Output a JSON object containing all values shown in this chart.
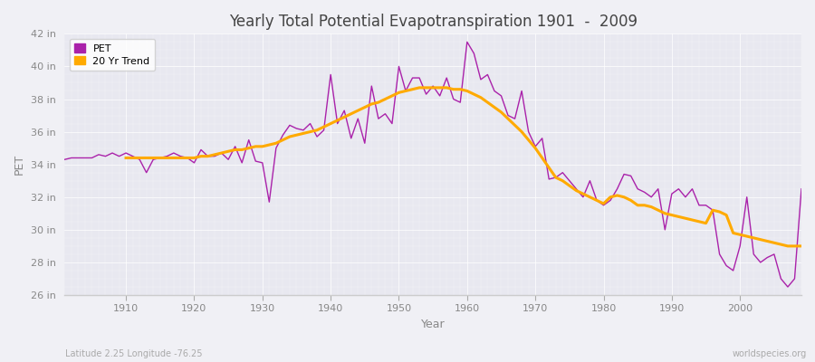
{
  "title": "Yearly Total Potential Evapotranspiration 1901  -  2009",
  "xlabel": "Year",
  "ylabel": "PET",
  "subtitle_left": "Latitude 2.25 Longitude -76.25",
  "subtitle_right": "worldspecies.org",
  "background_color": "#f0f0f5",
  "plot_bg_color": "#e8e8f0",
  "pet_color": "#aa22aa",
  "trend_color": "#ffaa00",
  "ylim": [
    26,
    42
  ],
  "xlim": [
    1901,
    2009
  ],
  "yticks": [
    26,
    28,
    30,
    32,
    34,
    36,
    38,
    40,
    42
  ],
  "ytick_labels": [
    "26 in",
    "28 in",
    "30 in",
    "32 in",
    "34 in",
    "36 in",
    "38 in",
    "40 in",
    "42 in"
  ],
  "xticks": [
    1910,
    1920,
    1930,
    1940,
    1950,
    1960,
    1970,
    1980,
    1990,
    2000
  ],
  "pet_years": [
    1901,
    1902,
    1903,
    1904,
    1905,
    1906,
    1907,
    1908,
    1909,
    1910,
    1911,
    1912,
    1913,
    1914,
    1915,
    1916,
    1917,
    1918,
    1919,
    1920,
    1921,
    1922,
    1923,
    1924,
    1925,
    1926,
    1927,
    1928,
    1929,
    1930,
    1931,
    1932,
    1933,
    1934,
    1935,
    1936,
    1937,
    1938,
    1939,
    1940,
    1941,
    1942,
    1943,
    1944,
    1945,
    1946,
    1947,
    1948,
    1949,
    1950,
    1951,
    1952,
    1953,
    1954,
    1955,
    1956,
    1957,
    1958,
    1959,
    1960,
    1961,
    1962,
    1963,
    1964,
    1965,
    1966,
    1967,
    1968,
    1969,
    1970,
    1971,
    1972,
    1973,
    1974,
    1975,
    1976,
    1977,
    1978,
    1979,
    1980,
    1981,
    1982,
    1983,
    1984,
    1985,
    1986,
    1987,
    1988,
    1989,
    1990,
    1991,
    1992,
    1993,
    1994,
    1995,
    1996,
    1997,
    1998,
    1999,
    2000,
    2001,
    2002,
    2003,
    2004,
    2005,
    2006,
    2007,
    2008,
    2009
  ],
  "pet_values": [
    34.3,
    34.4,
    34.4,
    34.4,
    34.4,
    34.6,
    34.5,
    34.7,
    34.5,
    34.7,
    34.5,
    34.3,
    33.5,
    34.3,
    34.4,
    34.5,
    34.7,
    34.5,
    34.4,
    34.1,
    34.9,
    34.5,
    34.5,
    34.7,
    34.3,
    35.1,
    34.1,
    35.5,
    34.2,
    34.1,
    31.7,
    35.0,
    35.8,
    36.4,
    36.2,
    36.1,
    36.5,
    35.7,
    36.1,
    39.5,
    36.5,
    37.3,
    35.6,
    36.8,
    35.3,
    38.8,
    36.8,
    37.1,
    36.5,
    40.0,
    38.5,
    39.3,
    39.3,
    38.3,
    38.8,
    38.2,
    39.3,
    38.0,
    37.8,
    41.5,
    40.8,
    39.2,
    39.5,
    38.5,
    38.2,
    37.0,
    36.8,
    38.5,
    36.0,
    35.1,
    35.6,
    33.1,
    33.2,
    33.5,
    33.0,
    32.5,
    32.0,
    33.0,
    31.8,
    31.5,
    31.8,
    32.5,
    33.4,
    33.3,
    32.5,
    32.3,
    32.0,
    32.5,
    30.0,
    32.2,
    32.5,
    32.0,
    32.5,
    31.5,
    31.5,
    31.2,
    28.5,
    27.8,
    27.5,
    29.0,
    32.0,
    28.5,
    28.0,
    28.3,
    28.5,
    27.0,
    26.5,
    27.0,
    32.5
  ],
  "trend_years": [
    1910,
    1911,
    1912,
    1913,
    1914,
    1915,
    1916,
    1917,
    1918,
    1919,
    1920,
    1921,
    1922,
    1923,
    1924,
    1925,
    1926,
    1927,
    1928,
    1929,
    1930,
    1931,
    1932,
    1933,
    1934,
    1935,
    1936,
    1937,
    1938,
    1939,
    1940,
    1941,
    1942,
    1943,
    1944,
    1945,
    1946,
    1947,
    1948,
    1949,
    1950,
    1951,
    1952,
    1953,
    1954,
    1955,
    1956,
    1957,
    1958,
    1959,
    1960,
    1961,
    1962,
    1963,
    1964,
    1965,
    1966,
    1967,
    1968,
    1969,
    1970,
    1971,
    1972,
    1973,
    1974,
    1975,
    1976,
    1977,
    1978,
    1979,
    1980,
    1981,
    1982,
    1983,
    1984,
    1985,
    1986,
    1987,
    1988,
    1989,
    1990,
    1991,
    1992,
    1993,
    1994,
    1995,
    1996,
    1997,
    1998,
    1999,
    2000,
    2001,
    2002,
    2003,
    2004,
    2005,
    2006,
    2007,
    2008,
    2009
  ],
  "trend_values": [
    34.4,
    34.4,
    34.4,
    34.4,
    34.4,
    34.4,
    34.4,
    34.4,
    34.4,
    34.4,
    34.4,
    34.5,
    34.5,
    34.6,
    34.7,
    34.8,
    34.9,
    34.9,
    35.0,
    35.1,
    35.1,
    35.2,
    35.3,
    35.5,
    35.7,
    35.8,
    35.9,
    36.0,
    36.1,
    36.3,
    36.5,
    36.7,
    36.9,
    37.1,
    37.3,
    37.5,
    37.7,
    37.8,
    38.0,
    38.2,
    38.4,
    38.5,
    38.6,
    38.7,
    38.7,
    38.7,
    38.7,
    38.7,
    38.6,
    38.6,
    38.5,
    38.3,
    38.1,
    37.8,
    37.5,
    37.2,
    36.8,
    36.4,
    36.0,
    35.5,
    35.0,
    34.4,
    33.8,
    33.2,
    33.0,
    32.7,
    32.4,
    32.2,
    32.0,
    31.8,
    31.6,
    32.0,
    32.1,
    32.0,
    31.8,
    31.5,
    31.5,
    31.4,
    31.2,
    31.0,
    30.9,
    30.8,
    30.7,
    30.6,
    30.5,
    30.4,
    31.2,
    31.1,
    30.9,
    29.8,
    29.7,
    29.6,
    29.5,
    29.4,
    29.3,
    29.2,
    29.1,
    29.0,
    29.0,
    29.0
  ]
}
